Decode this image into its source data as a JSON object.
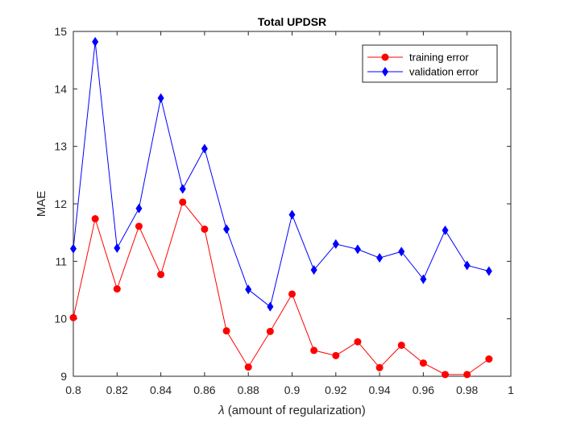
{
  "chart_data": {
    "type": "line",
    "title": "Total UPDSR",
    "xlabel_symbol": "λ",
    "xlabel_text": " (amount of regularization)",
    "ylabel": "MAE",
    "xlim": [
      0.8,
      1.0
    ],
    "ylim": [
      9,
      15
    ],
    "xticks": [
      0.8,
      0.82,
      0.84,
      0.86,
      0.88,
      0.9,
      0.92,
      0.94,
      0.96,
      0.98,
      1.0
    ],
    "xtick_labels": [
      "0.8",
      "0.82",
      "0.84",
      "0.86",
      "0.88",
      "0.9",
      "0.92",
      "0.94",
      "0.96",
      "0.98",
      "1"
    ],
    "yticks": [
      9,
      10,
      11,
      12,
      13,
      14,
      15
    ],
    "ytick_labels": [
      "9",
      "10",
      "11",
      "12",
      "13",
      "14",
      "15"
    ],
    "grid": false,
    "legend_position": "top-right",
    "x": [
      0.8,
      0.81,
      0.82,
      0.83,
      0.84,
      0.85,
      0.86,
      0.87,
      0.88,
      0.89,
      0.9,
      0.91,
      0.92,
      0.93,
      0.94,
      0.95,
      0.96,
      0.97,
      0.98,
      0.99
    ],
    "series": [
      {
        "name": "training error",
        "color": "#ff0000",
        "marker": "circle",
        "values": [
          10.02,
          11.74,
          10.52,
          11.61,
          10.77,
          12.03,
          11.56,
          9.79,
          9.16,
          9.78,
          10.43,
          9.45,
          9.36,
          9.6,
          9.15,
          9.54,
          9.23,
          9.03,
          9.03,
          9.3
        ]
      },
      {
        "name": "validation error",
        "color": "#0000ff",
        "marker": "diamond",
        "values": [
          11.22,
          14.82,
          11.23,
          11.92,
          13.84,
          12.26,
          12.96,
          11.56,
          10.51,
          10.21,
          11.81,
          10.85,
          11.3,
          11.21,
          11.06,
          11.17,
          10.69,
          11.54,
          10.93,
          10.83
        ]
      }
    ]
  }
}
